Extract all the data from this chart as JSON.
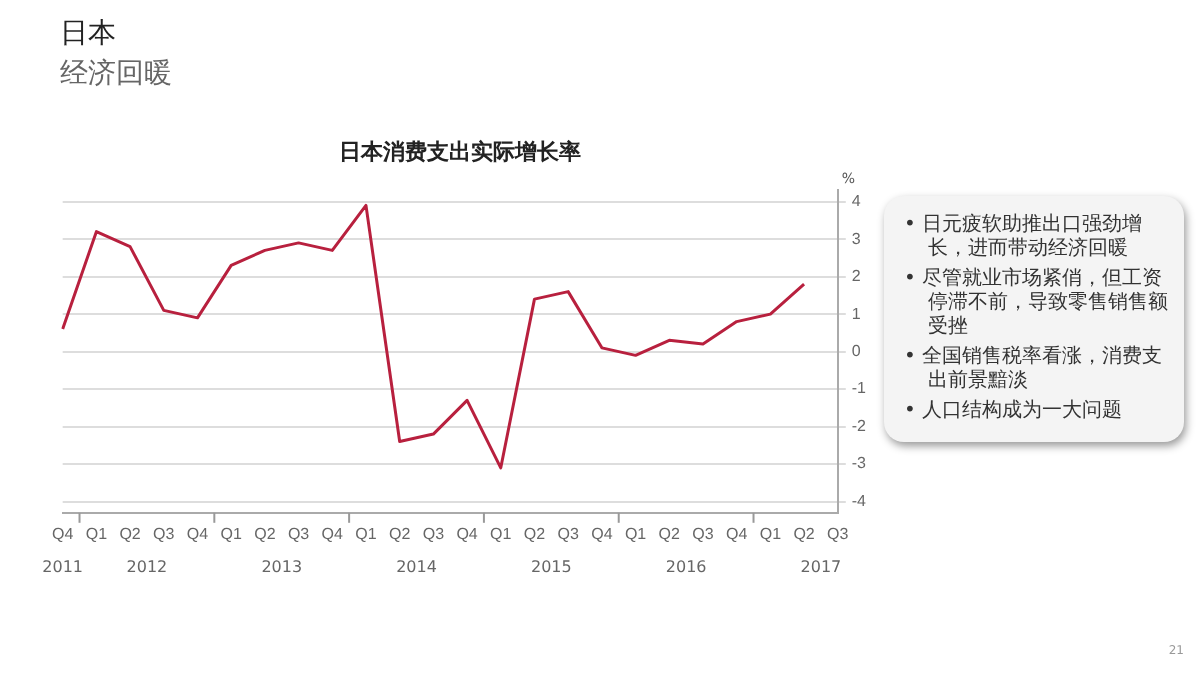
{
  "chart_data": {
    "type": "line",
    "title": "日本消费支出实际增长率",
    "ylabel": "%",
    "categories": [
      "Q4",
      "Q1",
      "Q2",
      "Q3",
      "Q4",
      "Q1",
      "Q2",
      "Q3",
      "Q4",
      "Q1",
      "Q2",
      "Q3",
      "Q4",
      "Q1",
      "Q2",
      "Q3",
      "Q4",
      "Q1",
      "Q2",
      "Q3",
      "Q4",
      "Q1",
      "Q2",
      "Q3"
    ],
    "values": [
      0.6,
      3.2,
      2.8,
      1.1,
      0.9,
      2.3,
      2.7,
      2.9,
      2.7,
      3.9,
      -2.4,
      -2.2,
      -1.3,
      -3.1,
      1.4,
      1.6,
      0.1,
      -0.1,
      0.3,
      0.2,
      0.8,
      1.0,
      1.8,
      null
    ],
    "color": "#b8203e",
    "ylim": [
      -4.3,
      4.3
    ],
    "yticks": [
      -4,
      -3,
      -2,
      -1,
      0,
      1,
      2,
      3,
      4
    ],
    "grid": "y",
    "legend": false,
    "marker": "none",
    "line_style": "solid",
    "annotations": [
      "日本",
      "经济回暖",
      "•  日元疲软助推出口强劲增长，进而带动经济回暖",
      "•  尽管就业市场紧俏，但工资停滞不前，导致零售销售额受挫",
      "•  全国销售税率看涨，消费支出前景黯淡",
      "•  人口结构成为一大问题",
      "21",
      "2011",
      "2012",
      "2013",
      "2014",
      "2015",
      "2016",
      "2017"
    ]
  }
}
